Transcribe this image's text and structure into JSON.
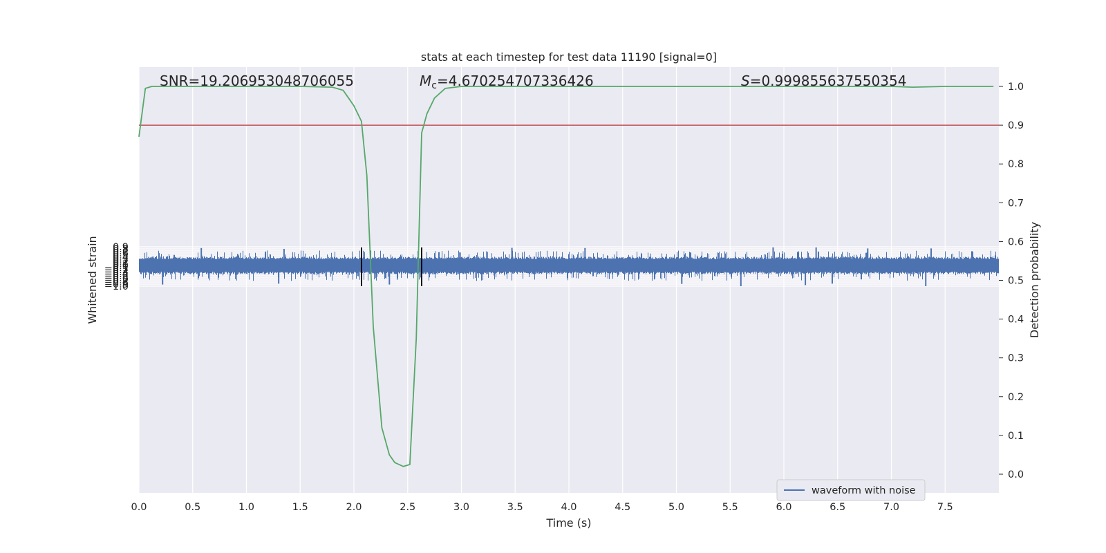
{
  "chart_data": {
    "type": "line",
    "title": "stats at each timestep for test data 11190 [signal=0]",
    "xlabel": "Time (s)",
    "ylabel": "Whitened strain",
    "y2label": "Detection probability",
    "xlim": [
      0.0,
      8.0
    ],
    "ylim": [
      -1.09,
      0.93
    ],
    "y2lim": [
      -0.05,
      1.045
    ],
    "xticks": [
      "0.0",
      "0.5",
      "1.0",
      "1.5",
      "2.0",
      "2.5",
      "3.0",
      "3.5",
      "4.0",
      "4.5",
      "5.0",
      "5.5",
      "6.0",
      "6.5",
      "7.0",
      "7.5"
    ],
    "yticks": [
      "0.9",
      "0.8",
      "0.7",
      "0.6",
      "0.5",
      "0.4",
      "0.3",
      "0.2",
      "0.1",
      "0.0",
      "−0.1",
      "−0.2",
      "−0.3",
      "−0.4",
      "−0.5",
      "−0.6",
      "−0.7",
      "−0.8",
      "−0.9",
      "−1.0"
    ],
    "y2ticks": [
      "1.0",
      "0.9",
      "0.8",
      "0.7",
      "0.6",
      "0.5",
      "0.4",
      "0.3",
      "0.2",
      "0.1",
      "0.0"
    ],
    "annotations": {
      "snr": "SNR=19.206953048706055",
      "mc_symbol": "M",
      "mc_sub": "c",
      "mc_value": "=4.670254707336426",
      "s_symbol": "S",
      "s_value": "=0.999855637550354"
    },
    "legend": {
      "label": "waveform with noise",
      "placement": "lower right"
    },
    "threshold": {
      "value": 0.9,
      "axis": "y2",
      "color": "#c44e52"
    },
    "vertical_lines": {
      "x": [
        2.07,
        2.63
      ],
      "ymin": -1.0,
      "ymax": 0.87,
      "color": "#000000"
    },
    "series": [
      {
        "name": "waveform with noise",
        "axis": "y",
        "color": "#4c72b0",
        "sample_rate": 2048,
        "duration": 8.0,
        "amplitude_core": 0.3,
        "notable_peaks": [
          {
            "x": 0.58,
            "y": 0.84
          },
          {
            "x": 1.35,
            "y": 0.8
          },
          {
            "x": 3.47,
            "y": 0.85
          },
          {
            "x": 4.15,
            "y": 0.84
          },
          {
            "x": 5.9,
            "y": 0.87
          },
          {
            "x": 6.3,
            "y": 0.87
          },
          {
            "x": 7.37,
            "y": 0.82
          },
          {
            "x": 6.78,
            "y": 0.82
          }
        ],
        "notable_troughs": [
          {
            "x": 0.22,
            "y": -0.92
          },
          {
            "x": 1.3,
            "y": -0.88
          },
          {
            "x": 2.33,
            "y": -0.92
          },
          {
            "x": 5.05,
            "y": -0.89
          },
          {
            "x": 5.6,
            "y": -1.0
          },
          {
            "x": 6.2,
            "y": -0.95
          },
          {
            "x": 7.32,
            "y": -1.0
          },
          {
            "x": 6.45,
            "y": -0.88
          }
        ]
      },
      {
        "name": "detection probability",
        "axis": "y2",
        "color": "#55a868",
        "x": [
          0.0,
          0.06,
          0.12,
          0.2,
          0.5,
          1.0,
          1.5,
          1.8,
          1.9,
          1.95,
          2.0,
          2.07,
          2.12,
          2.18,
          2.26,
          2.33,
          2.38,
          2.46,
          2.52,
          2.58,
          2.63,
          2.68,
          2.75,
          2.85,
          3.0,
          4.0,
          5.0,
          6.0,
          7.0,
          7.2,
          7.5,
          7.95
        ],
        "y": [
          0.87,
          0.995,
          1.0,
          1.0,
          1.0,
          1.0,
          1.0,
          0.998,
          0.99,
          0.97,
          0.95,
          0.91,
          0.77,
          0.38,
          0.12,
          0.05,
          0.03,
          0.02,
          0.025,
          0.35,
          0.88,
          0.93,
          0.97,
          0.995,
          1.0,
          1.0,
          1.0,
          1.0,
          1.0,
          0.998,
          1.0,
          1.0
        ]
      }
    ]
  }
}
